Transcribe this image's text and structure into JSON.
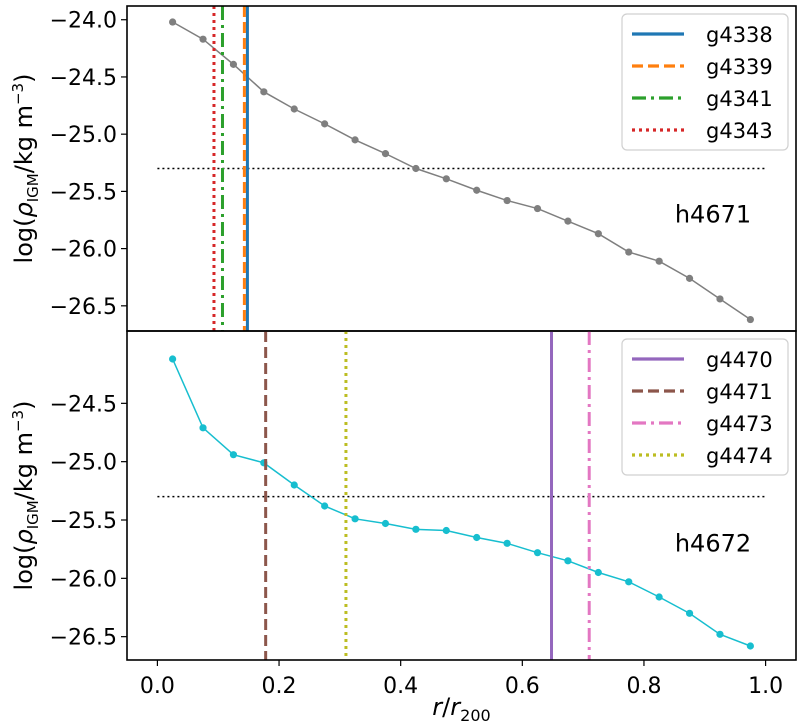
{
  "chart_data": [
    {
      "type": "line",
      "panel_label": "h4671",
      "ylabel": "log(ρ_IGM/kg m^-3)",
      "xlim": [
        -0.05,
        1.05
      ],
      "ylim": [
        -26.72,
        -23.88
      ],
      "yticks": [
        -24.0,
        -24.5,
        -25.0,
        -25.5,
        -26.0,
        -26.5
      ],
      "ytick_labels": [
        "−24.0",
        "−24.5",
        "−25.0",
        "−25.5",
        "−26.0",
        "−26.5"
      ],
      "threshold": {
        "y": -25.3,
        "x_range": [
          0.0,
          1.0
        ],
        "style": "dotted",
        "color": "#000000"
      },
      "profile": {
        "color": "#7f7f7f",
        "x": [
          0.025,
          0.075,
          0.125,
          0.175,
          0.225,
          0.275,
          0.325,
          0.375,
          0.425,
          0.475,
          0.525,
          0.575,
          0.625,
          0.675,
          0.725,
          0.775,
          0.825,
          0.875,
          0.925,
          0.975
        ],
        "y": [
          -24.02,
          -24.17,
          -24.39,
          -24.63,
          -24.78,
          -24.91,
          -25.05,
          -25.17,
          -25.3,
          -25.39,
          -25.49,
          -25.58,
          -25.65,
          -25.76,
          -25.87,
          -26.03,
          -26.11,
          -26.26,
          -26.44,
          -26.62
        ]
      },
      "vlines": [
        {
          "name": "g4338",
          "x": 0.148,
          "style": "solid",
          "color": "#1f77b4"
        },
        {
          "name": "g4339",
          "x": 0.143,
          "style": "dashed",
          "color": "#ff7f0e"
        },
        {
          "name": "g4341",
          "x": 0.107,
          "style": "dashdot",
          "color": "#2ca02c"
        },
        {
          "name": "g4343",
          "x": 0.093,
          "style": "dotted",
          "color": "#d62728"
        }
      ],
      "legend": "top-right"
    },
    {
      "type": "line",
      "panel_label": "h4672",
      "xlabel": "r/r_200",
      "ylabel": "log(ρ_IGM/kg m^-3)",
      "xlim": [
        -0.05,
        1.05
      ],
      "xticks": [
        0.0,
        0.2,
        0.4,
        0.6,
        0.8,
        1.0
      ],
      "xtick_labels": [
        "0.0",
        "0.2",
        "0.4",
        "0.6",
        "0.8",
        "1.0"
      ],
      "ylim": [
        -26.7,
        -23.88
      ],
      "yticks": [
        -24.5,
        -25.0,
        -25.5,
        -26.0,
        -26.5
      ],
      "ytick_labels": [
        "−24.5",
        "−25.0",
        "−25.5",
        "−26.0",
        "−26.5"
      ],
      "threshold": {
        "y": -25.3,
        "x_range": [
          0.0,
          1.0
        ],
        "style": "dotted",
        "color": "#000000"
      },
      "profile": {
        "color": "#17becf",
        "x": [
          0.025,
          0.075,
          0.125,
          0.175,
          0.225,
          0.275,
          0.325,
          0.375,
          0.425,
          0.475,
          0.525,
          0.575,
          0.625,
          0.675,
          0.725,
          0.775,
          0.825,
          0.875,
          0.925,
          0.975
        ],
        "y": [
          -24.12,
          -24.71,
          -24.94,
          -25.01,
          -25.2,
          -25.38,
          -25.49,
          -25.53,
          -25.58,
          -25.59,
          -25.65,
          -25.7,
          -25.78,
          -25.85,
          -25.95,
          -26.03,
          -26.16,
          -26.3,
          -26.48,
          -26.58
        ]
      },
      "vlines": [
        {
          "name": "g4470",
          "x": 0.648,
          "style": "solid",
          "color": "#9467bd"
        },
        {
          "name": "g4471",
          "x": 0.178,
          "style": "dashed",
          "color": "#8c564b"
        },
        {
          "name": "g4473",
          "x": 0.71,
          "style": "dashdot",
          "color": "#e377c2"
        },
        {
          "name": "g4474",
          "x": 0.31,
          "style": "dotted",
          "color": "#bcbd22"
        }
      ],
      "legend": "top-right"
    }
  ]
}
